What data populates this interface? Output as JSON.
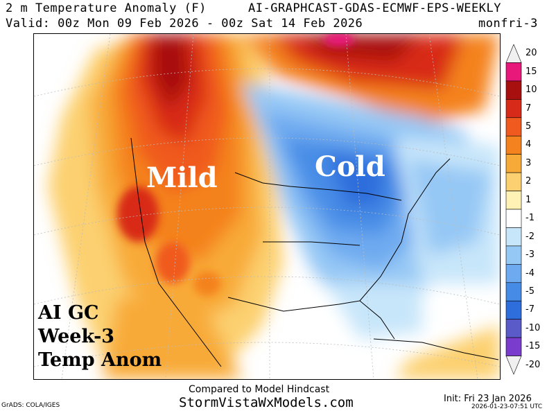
{
  "header": {
    "title": "2 m Temperature Anomaly (F)",
    "model": "AI-GRAPHCAST-GDAS-ECMWF-EPS-WEEKLY",
    "valid": "Valid: 00z Mon 09 Feb 2026 - 00z Sat 14 Feb 2026",
    "run": "monfri-3"
  },
  "map": {
    "labels": {
      "mild": "Mild",
      "cold": "Cold",
      "block1": "AI GC",
      "block2": "Week-3",
      "block3": "Temp Anom"
    }
  },
  "colorbar": {
    "levels": [
      {
        "label": "20",
        "color": "#f0f0f0"
      },
      {
        "label": "15",
        "color": "#e8187a"
      },
      {
        "label": "10",
        "color": "#a81010"
      },
      {
        "label": "7",
        "color": "#d82a18"
      },
      {
        "label": "5",
        "color": "#f05a1e"
      },
      {
        "label": "4",
        "color": "#f4821e"
      },
      {
        "label": "3",
        "color": "#f8aa38"
      },
      {
        "label": "2",
        "color": "#fcd070"
      },
      {
        "label": "1",
        "color": "#fff2b4"
      },
      {
        "label": "-1",
        "color": "#ffffff"
      },
      {
        "label": "-2",
        "color": "#c8e6fa"
      },
      {
        "label": "-3",
        "color": "#96c8f5"
      },
      {
        "label": "-4",
        "color": "#6eaaf0"
      },
      {
        "label": "-5",
        "color": "#468ce6"
      },
      {
        "label": "-7",
        "color": "#2d6edc"
      },
      {
        "label": "-10",
        "color": "#5a5ac8"
      },
      {
        "label": "-15",
        "color": "#7a3ccc"
      },
      {
        "label": "-20",
        "color": "#f0f0f0"
      }
    ]
  },
  "footer": {
    "compared": "Compared to Model Hindcast",
    "site": "StormVistaWxModels.com",
    "init": "Init: Fri 23 Jan 2026",
    "credit": "GrADS: COLA/IGES",
    "stamp": "2026-01-23-07:51 UTC"
  }
}
